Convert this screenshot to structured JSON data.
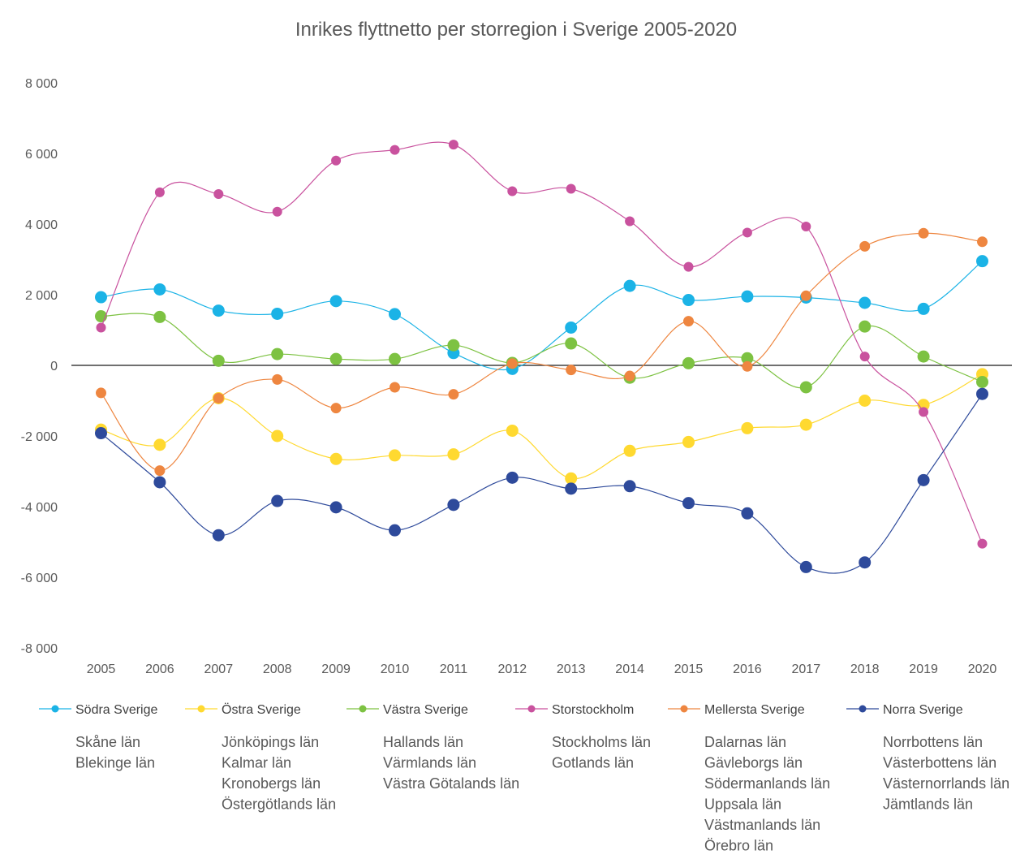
{
  "chart_data": {
    "type": "line",
    "title": "Inrikes flyttnetto per storregion i Sverige 2005-2020",
    "xlabel": "",
    "ylabel": "",
    "ylim": [
      -8000,
      8000
    ],
    "y_ticks": [
      {
        "value": 8000,
        "label": "8 000"
      },
      {
        "value": 6000,
        "label": "6 000"
      },
      {
        "value": 4000,
        "label": "4 000"
      },
      {
        "value": 2000,
        "label": "2 000"
      },
      {
        "value": 0,
        "label": "0"
      },
      {
        "value": -2000,
        "label": "-2 000"
      },
      {
        "value": -4000,
        "label": "-4 000"
      },
      {
        "value": -6000,
        "label": "-6 000"
      },
      {
        "value": -8000,
        "label": "-8 000"
      }
    ],
    "categories": [
      "2005",
      "2006",
      "2007",
      "2008",
      "2009",
      "2010",
      "2011",
      "2012",
      "2013",
      "2014",
      "2015",
      "2016",
      "2017",
      "2018",
      "2019",
      "2020"
    ],
    "grid": false,
    "legend_position": "bottom",
    "series": [
      {
        "name": "Södra Sverige",
        "color": "#1BB3E6",
        "values": [
          1930,
          2150,
          1550,
          1460,
          1820,
          1450,
          350,
          -100,
          1070,
          2250,
          1850,
          1950,
          1920,
          1770,
          1600,
          2950
        ],
        "regions": [
          "Skåne län",
          "Blekinge län"
        ]
      },
      {
        "name": "Östra Sverige",
        "color": "#FFD930",
        "values": [
          -1820,
          -2250,
          -930,
          -2000,
          -2650,
          -2550,
          -2520,
          -1850,
          -3200,
          -2420,
          -2170,
          -1780,
          -1680,
          -1000,
          -1120,
          -250
        ],
        "regions": [
          "Jönköpings län",
          "Kalmar län",
          "Kronobergs län",
          "Östergötlands län"
        ]
      },
      {
        "name": "Västra Sverige",
        "color": "#7DC242",
        "values": [
          1390,
          1370,
          130,
          320,
          180,
          180,
          570,
          70,
          620,
          -350,
          60,
          200,
          -620,
          1100,
          250,
          -470
        ],
        "regions": [
          "Hallands län",
          "Värmlands län",
          "Västra Götalands län"
        ]
      },
      {
        "name": "Storstockholm",
        "color": "#C9529E",
        "values": [
          1070,
          4900,
          4850,
          4350,
          5800,
          6100,
          6250,
          4930,
          5000,
          4080,
          2790,
          3760,
          3930,
          250,
          -1320,
          -5050
        ],
        "regions": [
          "Stockholms län",
          "Gotlands län"
        ]
      },
      {
        "name": "Mellersta Sverige",
        "color": "#EE8640",
        "values": [
          -780,
          -2980,
          -930,
          -400,
          -1210,
          -620,
          -820,
          50,
          -130,
          -300,
          1250,
          -30,
          1970,
          3370,
          3740,
          3500
        ],
        "regions": [
          "Dalarnas län",
          "Gävleborgs län",
          "Södermanlands län",
          "Uppsala län",
          "Västmanlands län",
          "Örebro län"
        ]
      },
      {
        "name": "Norra Sverige",
        "color": "#2E4A9B",
        "values": [
          -1920,
          -3310,
          -4810,
          -3840,
          -4020,
          -4670,
          -3950,
          -3180,
          -3490,
          -3420,
          -3900,
          -4190,
          -5710,
          -5580,
          -3250,
          -810
        ],
        "regions": [
          "Norrbottens län",
          "Västerbottens län",
          "Västernorrlands län",
          "Jämtlands län"
        ]
      }
    ]
  }
}
